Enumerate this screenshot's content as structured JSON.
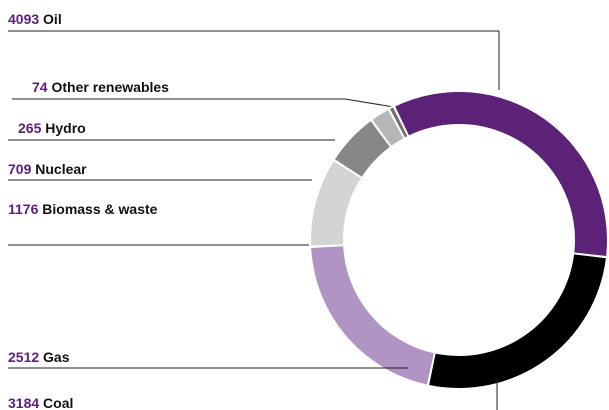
{
  "chart_data": {
    "type": "pie",
    "subtype": "donut",
    "title": "",
    "categories": [
      "Oil",
      "Coal",
      "Gas",
      "Biomass & waste",
      "Nuclear",
      "Hydro",
      "Other renewables"
    ],
    "values": [
      4093,
      3184,
      2512,
      1176,
      709,
      265,
      74
    ],
    "colors": [
      "#5c2278",
      "#000000",
      "#b094c4",
      "#d4d4d4",
      "#878787",
      "#b6b6b6",
      "#707070"
    ],
    "value_label_color": "#5c2278",
    "legend": "leader-line labels on left"
  }
}
